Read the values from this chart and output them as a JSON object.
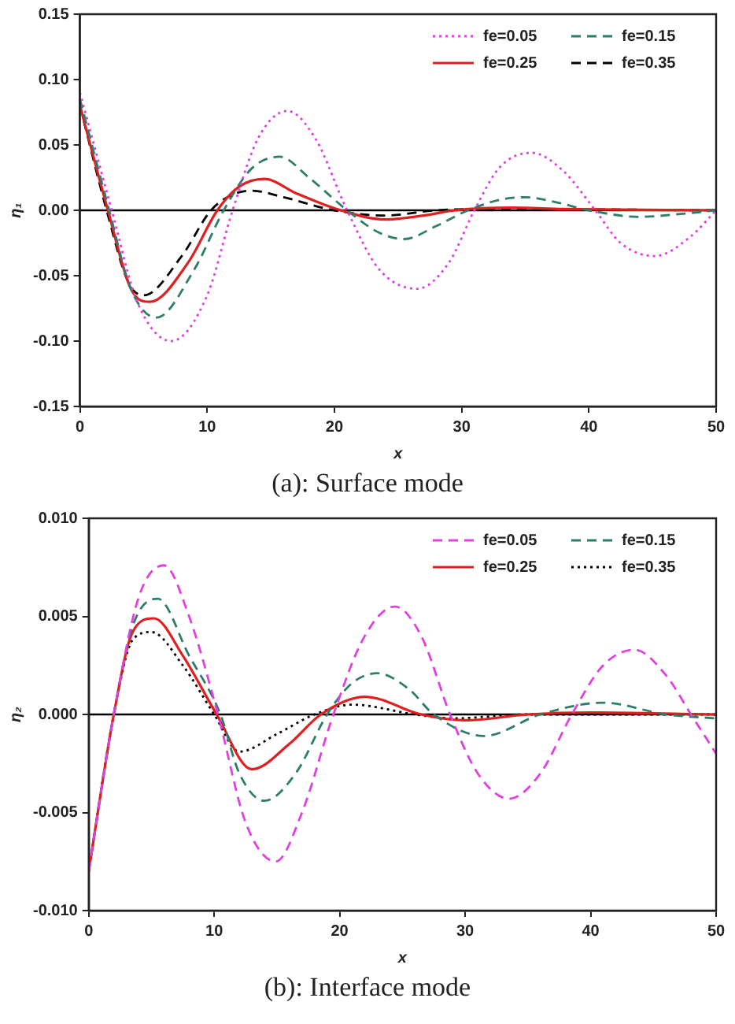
{
  "chart_data": [
    {
      "type": "line",
      "title": "(a): Surface mode",
      "xlabel": "x",
      "ylabel": "η₁",
      "xlim": [
        0,
        50
      ],
      "xticks": [
        0,
        10,
        20,
        30,
        40,
        50
      ],
      "ylim": [
        -0.15,
        0.15
      ],
      "yticks": [
        {
          "value": -0.15,
          "label": "-0.15"
        },
        {
          "value": -0.1,
          "label": "-0.10"
        },
        {
          "value": -0.05,
          "label": "-0.05"
        },
        {
          "value": 0,
          "label": "0.00"
        },
        {
          "value": 0.05,
          "label": "0.05"
        },
        {
          "value": 0.1,
          "label": "0.10"
        },
        {
          "value": 0.15,
          "label": "0.15"
        }
      ],
      "grid": false,
      "legend": "top right",
      "marker": "none",
      "ref_lines": [
        {
          "axis": "y",
          "value": 0,
          "color": "#000000"
        }
      ],
      "series": [
        {
          "name": "fe=0.05",
          "color": "#e040e0",
          "line_style": "dotted",
          "x": [
            0,
            2.5,
            4.5,
            7.2,
            10,
            12,
            14,
            16.3,
            18.5,
            21,
            23.5,
            26.5,
            29,
            31,
            33,
            35.5,
            38,
            40.5,
            42.5,
            45.2,
            48,
            50
          ],
          "values": [
            0.09,
            0,
            -0.07,
            -0.1,
            -0.065,
            0,
            0.055,
            0.076,
            0.055,
            0,
            -0.045,
            -0.06,
            -0.04,
            0,
            0.033,
            0.044,
            0.03,
            0,
            -0.025,
            -0.035,
            -0.02,
            0
          ]
        },
        {
          "name": "fe=0.15",
          "color": "#2e7d6b",
          "line_style": "dashed",
          "x": [
            0,
            2.3,
            4,
            6,
            9,
            11.3,
            13.5,
            15.7,
            18,
            21,
            23.5,
            25.5,
            28,
            30.5,
            33,
            35,
            37.5,
            40,
            44,
            47,
            50
          ],
          "values": [
            0.085,
            0,
            -0.06,
            -0.082,
            -0.045,
            0,
            0.032,
            0.041,
            0.025,
            0,
            -0.017,
            -0.022,
            -0.012,
            0,
            0.008,
            0.01,
            0.006,
            0,
            -0.005,
            -0.003,
            0
          ]
        },
        {
          "name": "fe=0.25",
          "color": "#e02020",
          "line_style": "solid",
          "x": [
            0,
            2.2,
            4,
            5.5,
            8.5,
            10.8,
            12.5,
            14.5,
            17,
            20.5,
            24,
            27,
            29.5,
            34,
            38,
            50
          ],
          "values": [
            0.08,
            0,
            -0.06,
            -0.07,
            -0.04,
            0,
            0.018,
            0.024,
            0.013,
            0,
            -0.007,
            -0.004,
            0,
            0.002,
            0.001,
            0
          ]
        },
        {
          "name": "fe=0.35",
          "color": "#000000",
          "line_style": "dashed",
          "x": [
            0,
            2.1,
            3.8,
            5,
            8,
            10.3,
            12,
            13.5,
            16,
            20,
            24,
            28,
            33,
            50
          ],
          "values": [
            0.08,
            0,
            -0.055,
            -0.065,
            -0.035,
            0,
            0.012,
            0.015,
            0.01,
            0,
            -0.004,
            0,
            0.001,
            0
          ]
        }
      ]
    },
    {
      "type": "line",
      "title": "(b): Interface mode",
      "xlabel": "x",
      "ylabel": "η₂",
      "xlim": [
        0,
        50
      ],
      "xticks": [
        0,
        10,
        20,
        30,
        40,
        50
      ],
      "ylim": [
        -0.01,
        0.01
      ],
      "yticks": [
        {
          "value": -0.01,
          "label": "-0.010"
        },
        {
          "value": -0.005,
          "label": "-0.005"
        },
        {
          "value": 0,
          "label": "0.000"
        },
        {
          "value": 0.005,
          "label": "0.005"
        },
        {
          "value": 0.01,
          "label": "0.010"
        }
      ],
      "grid": false,
      "legend": "top right",
      "marker": "none",
      "ref_lines": [
        {
          "axis": "y",
          "value": 0,
          "color": "#000000"
        }
      ],
      "series": [
        {
          "name": "fe=0.05",
          "color": "#e040e0",
          "line_style": "dashed",
          "x": [
            0,
            2,
            4,
            6,
            8,
            10.3,
            12.5,
            14.9,
            17,
            19.5,
            22,
            24.4,
            26.5,
            28.8,
            31,
            33.5,
            36,
            38.5,
            41,
            43.5,
            46,
            48,
            50
          ],
          "values": [
            -0.008,
            0,
            0.006,
            0.0076,
            0.005,
            0,
            -0.0055,
            -0.0075,
            -0.005,
            0,
            0.004,
            0.0055,
            0.004,
            0,
            -0.003,
            -0.0043,
            -0.003,
            0,
            0.0025,
            0.0033,
            0.002,
            0,
            -0.002
          ]
        },
        {
          "name": "fe=0.15",
          "color": "#2e7d6b",
          "line_style": "dashed",
          "x": [
            0,
            2,
            3.5,
            5.5,
            8,
            10.5,
            12,
            14,
            16.5,
            19,
            21,
            23,
            25.5,
            27.5,
            31.5,
            36,
            41,
            46,
            50
          ],
          "values": [
            -0.008,
            0,
            0.0045,
            0.0059,
            0.003,
            0,
            -0.003,
            -0.0044,
            -0.003,
            0,
            0.0016,
            0.0021,
            0.0013,
            0,
            -0.0011,
            0,
            0.0006,
            0,
            -0.0002
          ]
        },
        {
          "name": "fe=0.25",
          "color": "#e02020",
          "line_style": "solid",
          "x": [
            0,
            2,
            3.5,
            5.2,
            7.5,
            10.2,
            13,
            16,
            18.5,
            22,
            26.5,
            30,
            35,
            40,
            50
          ],
          "values": [
            -0.008,
            0,
            0.0042,
            0.0049,
            0.003,
            0,
            -0.0028,
            -0.0015,
            0,
            0.0009,
            0,
            -0.0003,
            0,
            0.0001,
            0
          ]
        },
        {
          "name": "fe=0.35",
          "color": "#000000",
          "line_style": "dotted",
          "x": [
            0,
            2,
            3.5,
            5,
            7.5,
            10,
            12,
            15,
            18,
            21,
            26,
            29,
            35,
            50
          ],
          "values": [
            -0.008,
            0,
            0.0038,
            0.0042,
            0.0025,
            0,
            -0.0019,
            -0.001,
            0,
            0.0005,
            0,
            -0.0002,
            0,
            0
          ]
        }
      ]
    }
  ]
}
